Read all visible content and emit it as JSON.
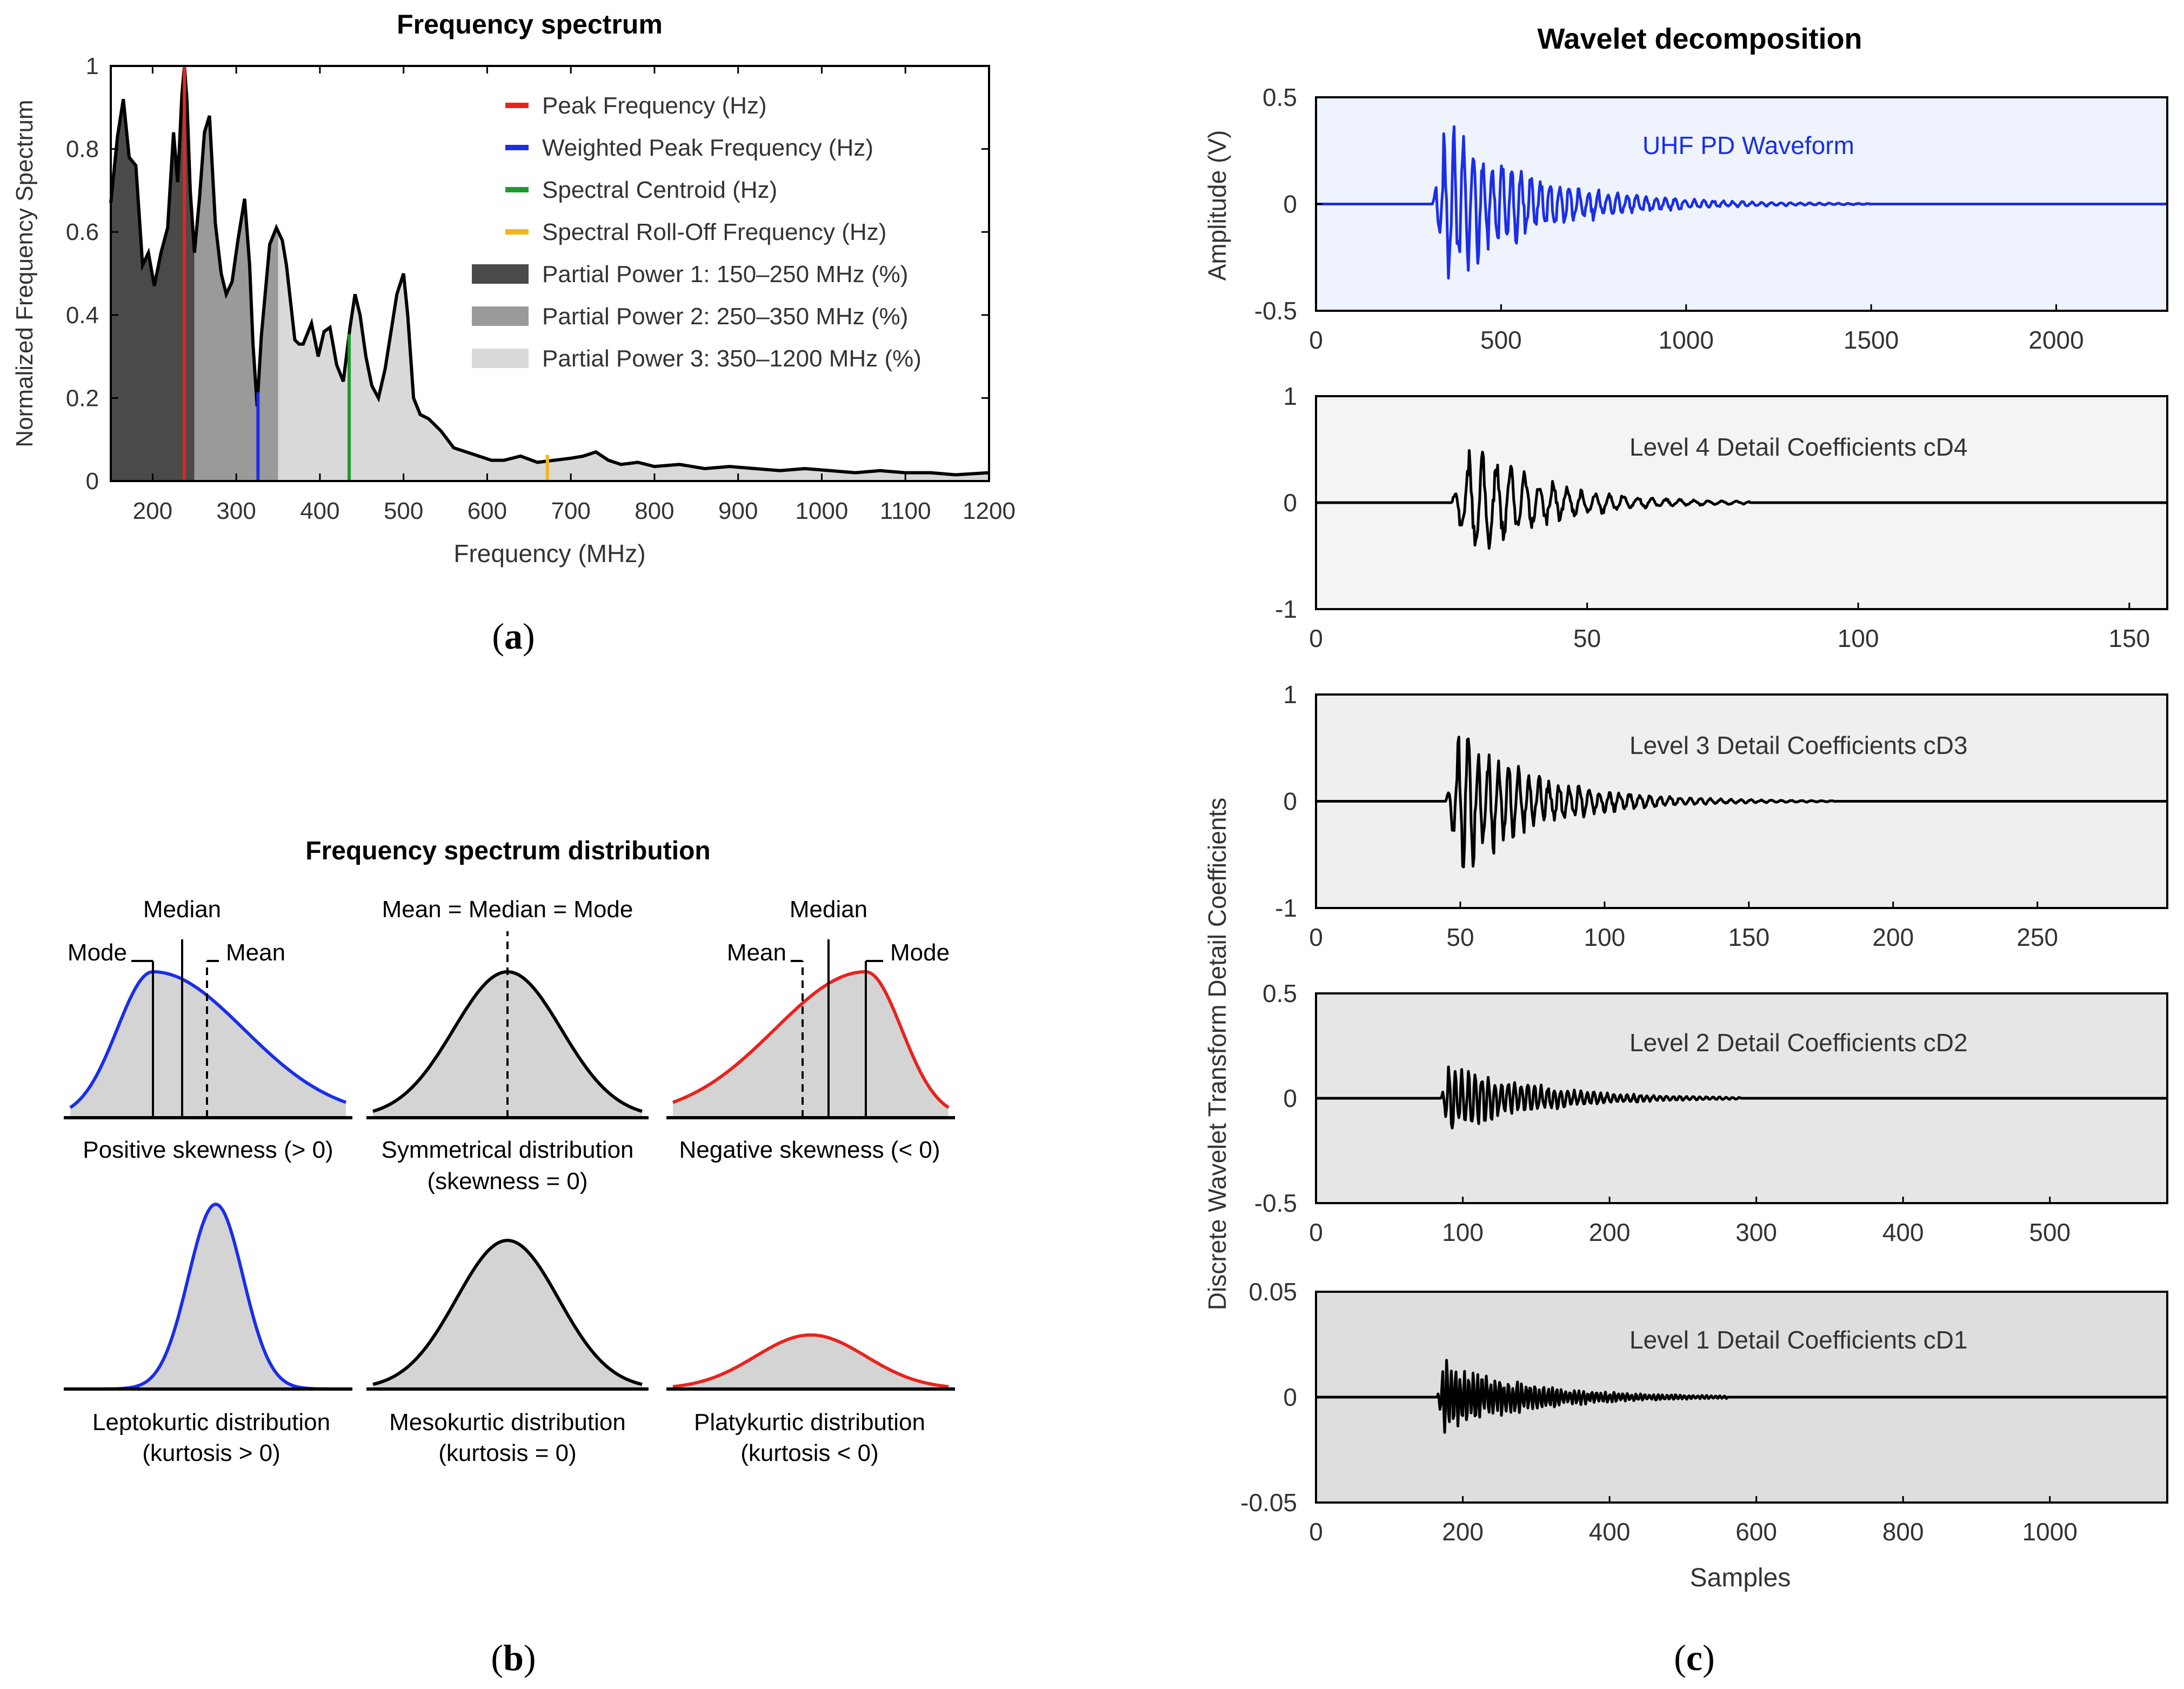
{
  "panel_a": {
    "title": "Frequency spectrum",
    "caption_letter": "a",
    "xlabel": "Frequency (MHz)",
    "ylabel": "Normalized Frequency Spectrum",
    "xticks": [
      200,
      300,
      400,
      500,
      600,
      700,
      800,
      900,
      1000,
      1100,
      1200
    ],
    "yticks": [
      "0",
      "0.2",
      "0.4",
      "0.6",
      "0.8",
      "1"
    ],
    "legend": [
      {
        "label": "Peak Frequency (Hz)",
        "color": "#e8231e",
        "kind": "line"
      },
      {
        "label": "Weighted Peak Frequency (Hz)",
        "color": "#1a2ee8",
        "kind": "line"
      },
      {
        "label": "Spectral Centroid (Hz)",
        "color": "#1e9a2a",
        "kind": "line"
      },
      {
        "label": "Spectral Roll-Off Frequency (Hz)",
        "color": "#f2b51d",
        "kind": "line"
      },
      {
        "label": "Partial Power 1: 150–250 MHz (%)",
        "color": "#4a4a4a",
        "kind": "patch"
      },
      {
        "label": "Partial Power 2: 250–350 MHz (%)",
        "color": "#9a9a9a",
        "kind": "patch"
      },
      {
        "label": "Partial Power 3: 350–1200 MHz (%)",
        "color": "#d9d9d9",
        "kind": "patch"
      }
    ]
  },
  "panel_b": {
    "title": "Frequency spectrum distribution",
    "caption_letter": "b",
    "labels": {
      "median": "Median",
      "mode": "Mode",
      "mean": "Mean",
      "mean_median_mode": "Mean = Median = Mode"
    },
    "row1": [
      {
        "caption1": "Positive skewness (> 0)",
        "caption2": "",
        "color": "#1a2ee8"
      },
      {
        "caption1": "Symmetrical distribution",
        "caption2": "(skewness = 0)",
        "color": "#000000"
      },
      {
        "caption1": "Negative skewness (< 0)",
        "caption2": "",
        "color": "#e8231e"
      }
    ],
    "row2": [
      {
        "caption1": "Leptokurtic distribution",
        "caption2": "(kurtosis > 0)",
        "color": "#1a2ee8"
      },
      {
        "caption1": "Mesokurtic distribution",
        "caption2": "(kurtosis = 0)",
        "color": "#000000"
      },
      {
        "caption1": "Platykurtic distribution",
        "caption2": "(kurtosis < 0)",
        "color": "#e8231e"
      }
    ]
  },
  "panel_c": {
    "title": "Wavelet decomposition",
    "caption_letter": "c",
    "xlabel": "Samples",
    "ylabel_top": "Amplitude (V)",
    "ylabel_shared": "Discrete Wavelet Transform Detail Coefficients"
  },
  "chart_data": [
    {
      "type": "area",
      "id": "spectrum",
      "title": "Frequency spectrum",
      "xlabel": "Frequency (MHz)",
      "ylabel": "Normalized Frequency Spectrum",
      "xlim": [
        150,
        1200
      ],
      "ylim": [
        0,
        1
      ],
      "x": [
        150,
        158,
        165,
        172,
        180,
        188,
        195,
        202,
        210,
        218,
        225,
        230,
        235,
        238,
        241,
        245,
        250,
        256,
        262,
        268,
        275,
        282,
        288,
        295,
        302,
        310,
        316,
        320,
        325,
        330,
        340,
        348,
        355,
        360,
        370,
        375,
        380,
        390,
        398,
        405,
        412,
        420,
        428,
        436,
        442,
        448,
        455,
        462,
        470,
        478,
        485,
        492,
        500,
        505,
        512,
        520,
        530,
        545,
        560,
        575,
        590,
        605,
        620,
        640,
        660,
        680,
        700,
        715,
        730,
        745,
        760,
        780,
        800,
        830,
        860,
        890,
        920,
        950,
        980,
        1010,
        1040,
        1070,
        1100,
        1130,
        1160,
        1200
      ],
      "y": [
        0.67,
        0.83,
        0.92,
        0.78,
        0.76,
        0.52,
        0.55,
        0.47,
        0.55,
        0.61,
        0.84,
        0.72,
        0.93,
        1.0,
        0.92,
        0.7,
        0.55,
        0.68,
        0.84,
        0.88,
        0.62,
        0.5,
        0.45,
        0.48,
        0.58,
        0.68,
        0.52,
        0.33,
        0.18,
        0.35,
        0.57,
        0.61,
        0.58,
        0.52,
        0.34,
        0.33,
        0.33,
        0.38,
        0.3,
        0.36,
        0.37,
        0.28,
        0.24,
        0.37,
        0.45,
        0.4,
        0.3,
        0.23,
        0.2,
        0.27,
        0.36,
        0.45,
        0.5,
        0.4,
        0.2,
        0.16,
        0.15,
        0.12,
        0.08,
        0.07,
        0.06,
        0.05,
        0.05,
        0.06,
        0.045,
        0.05,
        0.055,
        0.06,
        0.07,
        0.05,
        0.04,
        0.045,
        0.035,
        0.04,
        0.03,
        0.035,
        0.03,
        0.025,
        0.03,
        0.025,
        0.02,
        0.025,
        0.02,
        0.02,
        0.015,
        0.02
      ],
      "markers": {
        "peak_frequency": 238,
        "weighted_peak_frequency": 326,
        "spectral_centroid": 435,
        "spectral_rolloff_frequency": 672
      },
      "partial_power_bands": [
        [
          150,
          250
        ],
        [
          250,
          350
        ],
        [
          350,
          1200
        ]
      ]
    },
    {
      "type": "line",
      "id": "uhf_pd_waveform",
      "label": "UHF PD Waveform",
      "ylabel": "Amplitude (V)",
      "xlim": [
        0,
        2300
      ],
      "ylim": [
        -0.5,
        0.5
      ],
      "xticks": [
        0,
        500,
        1000,
        1500,
        2000
      ],
      "yticks": [
        "-0.5",
        "0",
        "0.5"
      ],
      "onset": 315,
      "end": 1500,
      "peak": 0.45,
      "decay": 0.0043,
      "period": 26,
      "color": "#1a2ee8",
      "background": "#eef3fd"
    },
    {
      "type": "line",
      "id": "cD4",
      "label": "Level 4 Detail Coefficients cD4",
      "xlim": [
        0,
        157
      ],
      "ylim": [
        -1,
        1
      ],
      "xticks": [
        0,
        50,
        100,
        150
      ],
      "yticks": [
        "-1",
        "0",
        "1"
      ],
      "onset": 25,
      "end": 80,
      "peak": 0.75,
      "decay": 0.075,
      "period": 2.6,
      "color": "#000000",
      "background": "#f4f4f4"
    },
    {
      "type": "line",
      "id": "cD3",
      "label": "Level 3 Detail Coefficients cD3",
      "xlim": [
        0,
        295
      ],
      "ylim": [
        -1,
        1
      ],
      "xticks": [
        0,
        50,
        100,
        150,
        200,
        250
      ],
      "yticks": [
        "-1",
        "0",
        "1"
      ],
      "onset": 45,
      "end": 180,
      "peak": 0.85,
      "decay": 0.038,
      "period": 3.5,
      "color": "#000000",
      "background": "#efefef"
    },
    {
      "type": "line",
      "id": "cD2",
      "label": "Level 2 Detail Coefficients cD2",
      "xlim": [
        0,
        580
      ],
      "ylim": [
        -0.5,
        0.5
      ],
      "xticks": [
        0,
        100,
        200,
        300,
        400,
        500
      ],
      "yticks": [
        "-0.5",
        "0",
        "0.5"
      ],
      "onset": 85,
      "end": 290,
      "peak": 0.2,
      "decay": 0.018,
      "period": 4.5,
      "color": "#000000",
      "background": "#e6e6e6"
    },
    {
      "type": "line",
      "id": "cD1",
      "label": "Level 1 Detail Coefficients cD1",
      "xlim": [
        0,
        1160
      ],
      "ylim": [
        -0.05,
        0.05
      ],
      "xticks": [
        0,
        200,
        400,
        600,
        800,
        1000
      ],
      "yticks": [
        "-0.05",
        "0",
        "0.05"
      ],
      "onset": 165,
      "end": 560,
      "peak": 0.018,
      "decay": 0.0085,
      "period": 6,
      "color": "#000000",
      "background": "#dedede"
    }
  ]
}
